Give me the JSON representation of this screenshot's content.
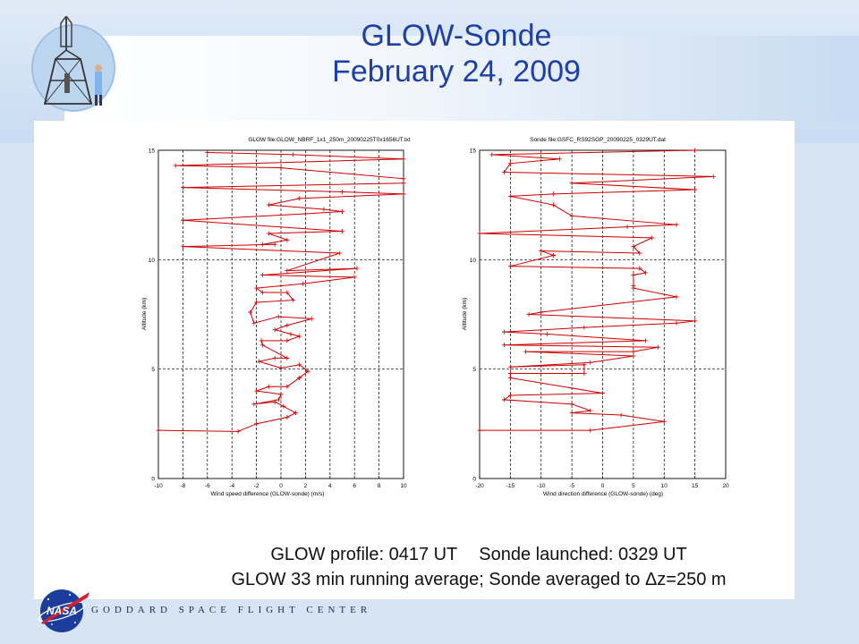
{
  "title": {
    "line1": "GLOW-Sonde",
    "line2": "February 24, 2009"
  },
  "caption": {
    "line1_left": "GLOW profile: 0417 UT",
    "line1_right": "Sonde launched: 0329 UT",
    "line2_prefix": "GLOW 33 min running average; Sonde averaged to ",
    "line2_delta": "Δ",
    "line2_suffix": "z=250 m"
  },
  "footer": {
    "nasa": "NASA",
    "center": "GODDARD SPACE FLIGHT CENTER"
  },
  "colors": {
    "title": "#1f3fa8",
    "series": "#cc0000",
    "background_blue": "#d6e4f4"
  },
  "chart_data": [
    {
      "type": "line",
      "title": "GLOW file:GLOW_NBRF_1x1_250m_20090225T0x1656UT.txt",
      "xlabel": "Wind speed difference (GLOW-sonde) (m/s)",
      "ylabel": "Altitude (km)",
      "xlim": [
        -10,
        10
      ],
      "ylim": [
        0,
        15
      ],
      "xticks": [
        "-10",
        "-8",
        "-6",
        "-4",
        "-2",
        "0",
        "2",
        "4",
        "6",
        "8",
        "10"
      ],
      "yticks": [
        "0",
        "5",
        "10",
        "15"
      ],
      "grid": true,
      "series": [
        {
          "x": [
            -10,
            -3.5,
            -2,
            0.5,
            1.2,
            0.2,
            -0.5,
            -2.2,
            -0.2,
            0,
            -2,
            -1,
            0.5,
            1.5,
            2.2,
            1.5,
            0,
            -1.8,
            -0.5,
            0.5,
            -1.5,
            -1.6,
            0.5,
            1.5,
            0.8,
            -0.5,
            0.5,
            2.5,
            -0.2,
            -2.2,
            -2.5,
            -2,
            1,
            0.5,
            -1.5,
            -2,
            1.8,
            6,
            -1.5,
            6.2,
            0.5,
            4.8,
            -8,
            -0.5,
            -1.5,
            0.5,
            -1,
            5,
            -8,
            2,
            5,
            3.5,
            -1,
            1.5,
            10,
            5,
            -8,
            10,
            10,
            0,
            -8.6,
            10,
            1,
            -6
          ],
          "y": [
            2.2,
            2.15,
            2.5,
            2.8,
            3.0,
            3.3,
            3.5,
            3.4,
            3.6,
            3.85,
            4.0,
            4.2,
            4.2,
            4.6,
            4.9,
            5.2,
            5.05,
            5.35,
            5.5,
            5.5,
            6.1,
            6.3,
            6.3,
            6.5,
            6.6,
            6.8,
            7.0,
            7.3,
            7.4,
            7.1,
            7.6,
            8.05,
            8.15,
            8.5,
            8.5,
            8.7,
            8.9,
            9.2,
            9.3,
            9.6,
            9.5,
            10.3,
            10.6,
            10.7,
            10.7,
            10.9,
            11.2,
            11.3,
            11.8,
            12.1,
            12.2,
            12.3,
            12.5,
            12.8,
            13.0,
            13.1,
            13.3,
            13.5,
            13.7,
            14.2,
            14.3,
            14.6,
            14.8,
            14.9
          ]
        }
      ]
    },
    {
      "type": "line",
      "title": "Sonde file:GSFC_RS92SGP_20090225_0329UT.dat",
      "xlabel": "Wind direction difference (GLOW-sonde) (deg)",
      "ylabel": "Altitude (km)",
      "xlim": [
        -20,
        20
      ],
      "ylim": [
        0,
        15
      ],
      "xticks": [
        "-20",
        "-15",
        "-10",
        "-5",
        "0",
        "5",
        "10",
        "15",
        "20"
      ],
      "yticks": [
        "0",
        "5",
        "10",
        "15"
      ],
      "grid": true,
      "series": [
        {
          "x": [
            -20,
            -2,
            10,
            3,
            -5,
            -2,
            -5,
            -16,
            -15,
            0,
            -15,
            -15,
            -3,
            -3,
            -15,
            -2,
            5,
            -12.5,
            5,
            9,
            -16,
            7,
            -9,
            -16,
            -3,
            12,
            15,
            -12,
            -10,
            12,
            5,
            5,
            5,
            7,
            6,
            -15,
            -8,
            -10,
            6,
            5,
            8,
            -20,
            4,
            12,
            -5,
            -8,
            -15,
            -8,
            15,
            -5,
            18,
            -16,
            -15,
            -7,
            -18,
            15
          ],
          "y": [
            2.2,
            2.2,
            2.6,
            2.9,
            3.0,
            3.1,
            3.4,
            3.6,
            3.8,
            3.9,
            4.6,
            4.8,
            4.8,
            5.2,
            5.1,
            5.3,
            5.6,
            5.8,
            5.8,
            6.0,
            6.1,
            6.3,
            6.6,
            6.7,
            6.9,
            7.1,
            7.2,
            7.5,
            7.6,
            8.3,
            8.7,
            8.8,
            9.3,
            9.4,
            9.6,
            9.7,
            10.2,
            10.4,
            10.3,
            10.6,
            11.0,
            11.2,
            11.5,
            11.6,
            12.0,
            12.5,
            12.9,
            13.0,
            13.2,
            13.5,
            13.8,
            14.0,
            14.4,
            14.6,
            14.8,
            15.0
          ]
        }
      ]
    }
  ]
}
